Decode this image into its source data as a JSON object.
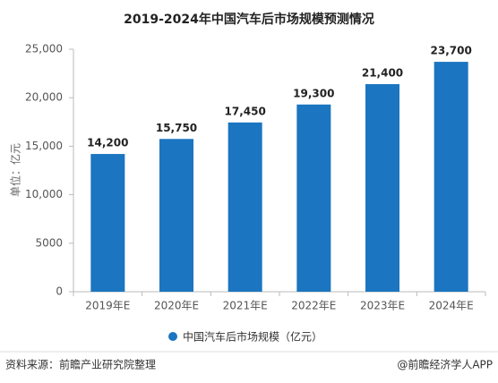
{
  "chart_data": {
    "type": "bar",
    "title": "2019-2024年中国汽车后市场规模预测情况",
    "y_label": "单位：亿元",
    "categories": [
      "2019年E",
      "2020年E",
      "2021年E",
      "2022年E",
      "2023年E",
      "2024年E"
    ],
    "series": [
      {
        "name": "中国汽车后市场规模（亿元）",
        "color": "#1b75c0",
        "values": [
          14200,
          15750,
          17450,
          19300,
          21400,
          23700
        ],
        "value_labels": [
          "14,200",
          "15,750",
          "17,450",
          "19,300",
          "21,400",
          "23,700"
        ]
      }
    ],
    "ylim": [
      0,
      25000
    ],
    "yticks": [
      0,
      5000,
      {
        "value": 10000,
        "label": "10,000"
      },
      {
        "value": 15000,
        "label": "15,000"
      },
      {
        "value": 20000,
        "label": "20,000"
      },
      {
        "value": 25000,
        "label": "25,000"
      }
    ],
    "grid": false,
    "legend": "bottom"
  },
  "footer": {
    "source": "资料来源：前瞻产业研究院整理",
    "credit": "@前瞻经济学人APP"
  }
}
